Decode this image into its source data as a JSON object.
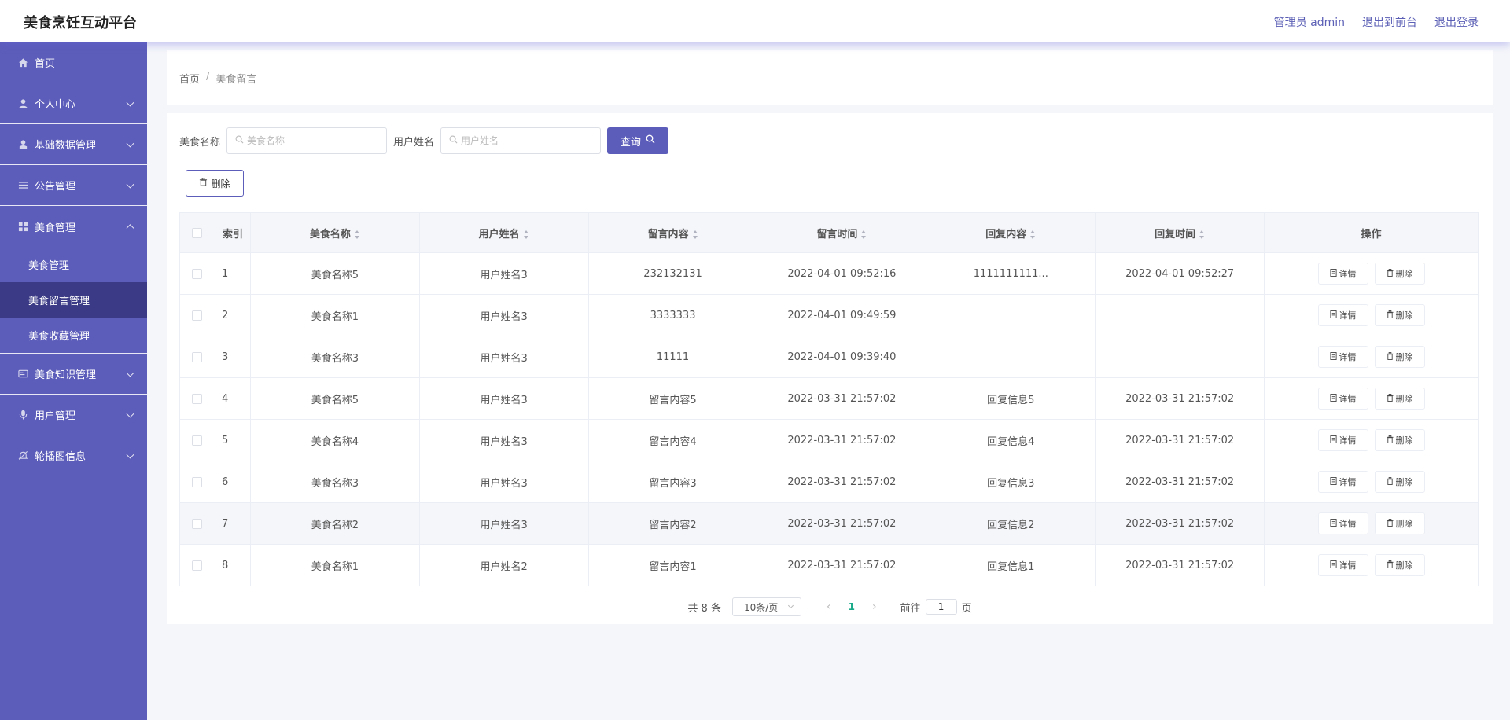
{
  "header": {
    "brand": "美食烹饪互动平台",
    "admin_label": "管理员 admin",
    "to_front": "退出到前台",
    "logout": "退出登录"
  },
  "sidebar": {
    "items": [
      {
        "label": "首页",
        "icon": "home-icon"
      },
      {
        "label": "个人中心",
        "icon": "user-icon"
      },
      {
        "label": "基础数据管理",
        "icon": "user-icon"
      },
      {
        "label": "公告管理",
        "icon": "list-icon"
      },
      {
        "label": "美食管理",
        "icon": "grid-icon"
      },
      {
        "label": "美食知识管理",
        "icon": "card-icon"
      },
      {
        "label": "用户管理",
        "icon": "mic-icon"
      },
      {
        "label": "轮播图信息",
        "icon": "bell-off-icon"
      }
    ],
    "submenu": [
      {
        "label": "美食管理"
      },
      {
        "label": "美食留言管理"
      },
      {
        "label": "美食收藏管理"
      }
    ]
  },
  "breadcrumb": {
    "home": "首页",
    "separator": "/",
    "current": "美食留言"
  },
  "search": {
    "food_label": "美食名称",
    "food_placeholder": "美食名称",
    "user_label": "用户姓名",
    "user_placeholder": "用户姓名",
    "query_label": "查询"
  },
  "toolbar": {
    "delete_label": "删除"
  },
  "table": {
    "headers": {
      "index": "索引",
      "food": "美食名称",
      "user": "用户姓名",
      "content": "留言内容",
      "time": "留言时间",
      "reply": "回复内容",
      "reply_time": "回复时间",
      "ops": "操作"
    },
    "detail_label": "详情",
    "delete_label": "删除",
    "rows": [
      {
        "index": "1",
        "food": "美食名称5",
        "user": "用户姓名3",
        "content": "232132131",
        "time": "2022-04-01 09:52:16",
        "reply": "1111111111...",
        "reply_time": "2022-04-01 09:52:27"
      },
      {
        "index": "2",
        "food": "美食名称1",
        "user": "用户姓名3",
        "content": "3333333",
        "time": "2022-04-01 09:49:59",
        "reply": "",
        "reply_time": ""
      },
      {
        "index": "3",
        "food": "美食名称3",
        "user": "用户姓名3",
        "content": "11111",
        "time": "2022-04-01 09:39:40",
        "reply": "",
        "reply_time": ""
      },
      {
        "index": "4",
        "food": "美食名称5",
        "user": "用户姓名3",
        "content": "留言内容5",
        "time": "2022-03-31 21:57:02",
        "reply": "回复信息5",
        "reply_time": "2022-03-31 21:57:02"
      },
      {
        "index": "5",
        "food": "美食名称4",
        "user": "用户姓名3",
        "content": "留言内容4",
        "time": "2022-03-31 21:57:02",
        "reply": "回复信息4",
        "reply_time": "2022-03-31 21:57:02"
      },
      {
        "index": "6",
        "food": "美食名称3",
        "user": "用户姓名3",
        "content": "留言内容3",
        "time": "2022-03-31 21:57:02",
        "reply": "回复信息3",
        "reply_time": "2022-03-31 21:57:02"
      },
      {
        "index": "7",
        "food": "美食名称2",
        "user": "用户姓名3",
        "content": "留言内容2",
        "time": "2022-03-31 21:57:02",
        "reply": "回复信息2",
        "reply_time": "2022-03-31 21:57:02"
      },
      {
        "index": "8",
        "food": "美食名称1",
        "user": "用户姓名2",
        "content": "留言内容1",
        "time": "2022-03-31 21:57:02",
        "reply": "回复信息1",
        "reply_time": "2022-03-31 21:57:02"
      }
    ]
  },
  "pagination": {
    "total": "共 8 条",
    "page_size": "10条/页",
    "current_page": "1",
    "goto_prefix": "前往",
    "goto_value": "1",
    "goto_suffix": "页"
  },
  "colors": {
    "primary": "#5c5cba",
    "sidebar_active": "#3a3a86",
    "page_active": "#1aaa8a"
  }
}
